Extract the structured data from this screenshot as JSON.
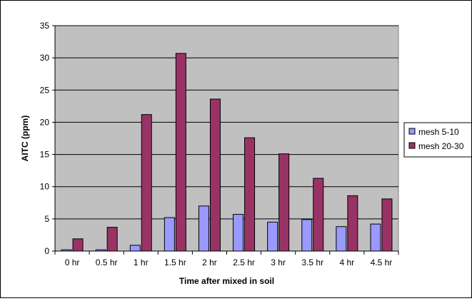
{
  "chart_data": {
    "type": "bar",
    "categories": [
      "0 hr",
      "0.5 hr",
      "1 hr",
      "1.5 hr",
      "2 hr",
      "2.5 hr",
      "3 hr",
      "3.5 hr",
      "4 hr",
      "4.5 hr"
    ],
    "series": [
      {
        "name": "mesh 5-10",
        "color": "#9999ff",
        "values": [
          0.2,
          0.2,
          0.9,
          5.2,
          7.0,
          5.7,
          4.5,
          4.9,
          3.8,
          4.2
        ]
      },
      {
        "name": "mesh 20-30",
        "color": "#993366",
        "values": [
          1.9,
          3.7,
          21.2,
          30.7,
          23.6,
          17.6,
          15.1,
          11.3,
          8.6,
          8.1
        ]
      }
    ],
    "title": "",
    "xlabel": "Time after mixed in soil",
    "ylabel": "AITC (ppm)",
    "ylim": [
      0,
      35
    ],
    "yticks": [
      0,
      5,
      10,
      15,
      20,
      25,
      30,
      35
    ],
    "grid": true,
    "plot_background": "#c0c0c0",
    "legend_position": "right"
  }
}
